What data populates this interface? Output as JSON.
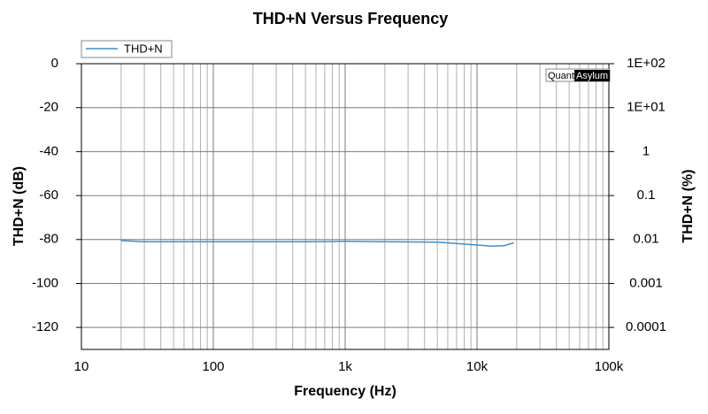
{
  "chart_data": {
    "type": "line",
    "title": "THD+N Versus Frequency",
    "x_label": "Frequency (Hz)",
    "y_label": "THD+N (dB)",
    "y2_label": "THD+N (%)",
    "watermark": {
      "left": "Quant",
      "right": "Asylum"
    },
    "x": [
      20,
      30,
      50,
      100,
      200,
      500,
      1000,
      2000,
      5000,
      7000,
      10000,
      13000,
      16000,
      19000
    ],
    "series": [
      {
        "name": "THD+N",
        "color": "#3b8fd0",
        "values": [
          -80.5,
          -81,
          -81,
          -81,
          -81,
          -81,
          -80.8,
          -81,
          -81.2,
          -81.8,
          -82.5,
          -83,
          -82.8,
          -81.5
        ]
      }
    ],
    "x_log": true,
    "xlim": [
      10,
      100000
    ],
    "xticks": [
      10,
      100,
      {
        "value": 1000,
        "label": "1k"
      },
      {
        "value": 10000,
        "label": "10k"
      },
      {
        "value": 100000,
        "label": "100k"
      }
    ],
    "ylim": [
      -130,
      0
    ],
    "yticks": [
      0,
      -20,
      -40,
      -60,
      -80,
      -100,
      -120
    ],
    "y2_log": true,
    "y2lim": [
      3.16e-05,
      100
    ],
    "y2ticks": [
      {
        "value": 100,
        "label": "1E+02"
      },
      {
        "value": 10,
        "label": "1E+01"
      },
      1,
      0.1,
      0.01,
      0.001,
      0.0001
    ],
    "grid": true,
    "minor_grid": true,
    "legend": "top-left"
  }
}
